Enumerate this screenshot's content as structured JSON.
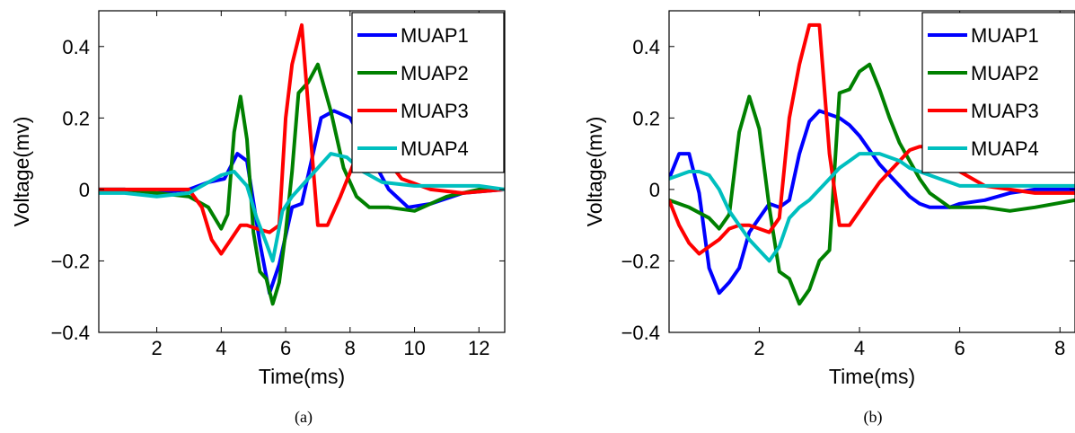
{
  "chart_data": [
    {
      "type": "line",
      "caption": "(a)",
      "xlabel": "Time(ms)",
      "ylabel": "Voltage(mv)",
      "xlim": [
        0.2,
        12.8
      ],
      "ylim": [
        -0.4,
        0.5
      ],
      "xticks": [
        2,
        4,
        6,
        8,
        10,
        12
      ],
      "yticks": [
        -0.4,
        -0.2,
        0,
        0.2,
        0.4
      ],
      "ytick_labels": [
        "−0.4",
        "−0.2",
        "0",
        "0.2",
        "0.4"
      ],
      "legend_position": "top-right",
      "series": [
        {
          "name": "MUAP1",
          "color": "#0000ff",
          "x": [
            0.2,
            1,
            2,
            3,
            3.6,
            4.1,
            4.5,
            4.8,
            5.2,
            5.5,
            5.8,
            6.2,
            6.5,
            6.8,
            7.1,
            7.5,
            8,
            8.6,
            9.2,
            9.8,
            10.5,
            11.5,
            12.8
          ],
          "y": [
            0,
            0,
            -0.01,
            0,
            0.02,
            0.03,
            0.1,
            0.08,
            -0.15,
            -0.29,
            -0.21,
            -0.05,
            -0.04,
            0.08,
            0.2,
            0.22,
            0.2,
            0.1,
            0,
            -0.05,
            -0.04,
            -0.01,
            0
          ]
        },
        {
          "name": "MUAP2",
          "color": "#008000",
          "x": [
            0.2,
            1,
            2,
            3,
            3.6,
            4,
            4.2,
            4.4,
            4.6,
            4.8,
            5,
            5.2,
            5.4,
            5.6,
            5.8,
            6,
            6.2,
            6.4,
            6.7,
            7,
            7.4,
            7.8,
            8.2,
            8.6,
            9.2,
            10,
            11,
            12,
            12.8
          ],
          "y": [
            0,
            0,
            -0.01,
            -0.02,
            -0.05,
            -0.11,
            -0.07,
            0.16,
            0.26,
            0.14,
            -0.12,
            -0.23,
            -0.25,
            -0.32,
            -0.26,
            -0.12,
            0.05,
            0.27,
            0.3,
            0.35,
            0.22,
            0.06,
            -0.02,
            -0.05,
            -0.05,
            -0.06,
            -0.02,
            0,
            0
          ]
        },
        {
          "name": "MUAP3",
          "color": "#ff0000",
          "x": [
            0.2,
            1,
            2,
            3,
            3.4,
            3.7,
            4,
            4.3,
            4.6,
            4.8,
            5.1,
            5.5,
            5.8,
            6,
            6.2,
            6.5,
            6.8,
            7,
            7.3,
            7.7,
            8.1,
            8.5,
            9,
            9.6,
            10.5,
            11.5,
            12.8
          ],
          "y": [
            0,
            0,
            0,
            0,
            -0.05,
            -0.14,
            -0.18,
            -0.14,
            -0.1,
            -0.1,
            -0.11,
            -0.12,
            -0.1,
            0.2,
            0.35,
            0.46,
            0.12,
            -0.1,
            -0.1,
            -0.02,
            0.07,
            0.12,
            0.1,
            0.03,
            0,
            -0.01,
            0
          ]
        },
        {
          "name": "MUAP4",
          "color": "#00bfbf",
          "x": [
            0.2,
            1,
            2,
            3,
            4,
            4.4,
            4.8,
            5.1,
            5.4,
            5.6,
            5.9,
            6.2,
            6.6,
            7,
            7.4,
            7.9,
            8.4,
            9,
            10,
            11,
            12,
            12.8
          ],
          "y": [
            -0.01,
            -0.01,
            -0.02,
            -0.01,
            0.04,
            0.05,
            0.01,
            -0.08,
            -0.15,
            -0.2,
            -0.06,
            -0.02,
            0.02,
            0.06,
            0.1,
            0.09,
            0.05,
            0.02,
            0.01,
            0.01,
            0.01,
            0
          ]
        }
      ]
    },
    {
      "type": "line",
      "caption": "(b)",
      "xlabel": "Time(ms)",
      "ylabel": "Voltage(mv)",
      "xlim": [
        0.2,
        8.3
      ],
      "ylim": [
        -0.4,
        0.5
      ],
      "xticks": [
        2,
        4,
        6,
        8
      ],
      "yticks": [
        -0.4,
        -0.2,
        0,
        0.2,
        0.4
      ],
      "ytick_labels": [
        "−0.4",
        "−0.2",
        "0",
        "0.2",
        "0.4"
      ],
      "legend_position": "top-right",
      "series": [
        {
          "name": "MUAP1",
          "color": "#0000ff",
          "x": [
            0.2,
            0.4,
            0.6,
            0.8,
            1,
            1.2,
            1.4,
            1.6,
            1.8,
            2,
            2.2,
            2.4,
            2.6,
            2.8,
            3,
            3.2,
            3.4,
            3.6,
            3.8,
            4,
            4.2,
            4.4,
            4.6,
            4.8,
            5,
            5.2,
            5.4,
            5.6,
            5.8,
            6,
            6.5,
            7,
            7.5,
            8.3
          ],
          "y": [
            0.03,
            0.1,
            0.1,
            -0.01,
            -0.22,
            -0.29,
            -0.26,
            -0.22,
            -0.12,
            -0.08,
            -0.04,
            -0.05,
            -0.03,
            0.1,
            0.19,
            0.22,
            0.21,
            0.2,
            0.18,
            0.15,
            0.11,
            0.07,
            0.04,
            0.01,
            -0.02,
            -0.04,
            -0.05,
            -0.05,
            -0.05,
            -0.04,
            -0.03,
            -0.01,
            0,
            0
          ]
        },
        {
          "name": "MUAP2",
          "color": "#008000",
          "x": [
            0.2,
            0.6,
            1,
            1.2,
            1.4,
            1.6,
            1.8,
            2,
            2.2,
            2.4,
            2.6,
            2.8,
            3,
            3.2,
            3.4,
            3.6,
            3.8,
            4,
            4.2,
            4.4,
            4.6,
            4.8,
            5,
            5.2,
            5.4,
            5.6,
            5.8,
            6,
            6.5,
            7,
            7.5,
            8.3
          ],
          "y": [
            -0.03,
            -0.05,
            -0.08,
            -0.11,
            -0.07,
            0.16,
            0.26,
            0.17,
            -0.05,
            -0.23,
            -0.25,
            -0.32,
            -0.28,
            -0.2,
            -0.17,
            0.27,
            0.28,
            0.33,
            0.35,
            0.28,
            0.2,
            0.13,
            0.08,
            0.03,
            -0.01,
            -0.03,
            -0.05,
            -0.05,
            -0.05,
            -0.06,
            -0.05,
            -0.03
          ]
        },
        {
          "name": "MUAP3",
          "color": "#ff0000",
          "x": [
            0.2,
            0.4,
            0.6,
            0.8,
            1,
            1.2,
            1.4,
            1.6,
            1.8,
            2,
            2.2,
            2.4,
            2.6,
            2.8,
            3,
            3.2,
            3.4,
            3.6,
            3.8,
            4,
            4.2,
            4.4,
            4.6,
            4.8,
            5,
            5.2,
            5.4,
            5.6,
            5.8,
            6,
            6.5,
            7,
            7.5,
            8.3
          ],
          "y": [
            -0.03,
            -0.1,
            -0.15,
            -0.18,
            -0.16,
            -0.14,
            -0.11,
            -0.1,
            -0.1,
            -0.11,
            -0.12,
            -0.08,
            0.2,
            0.35,
            0.46,
            0.46,
            0.1,
            -0.1,
            -0.1,
            -0.06,
            -0.02,
            0.02,
            0.05,
            0.08,
            0.11,
            0.12,
            0.12,
            0.1,
            0.08,
            0.05,
            0.01,
            0,
            -0.01,
            -0.01
          ]
        },
        {
          "name": "MUAP4",
          "color": "#00bfbf",
          "x": [
            0.2,
            0.4,
            0.6,
            0.8,
            1,
            1.2,
            1.4,
            1.6,
            1.8,
            2,
            2.2,
            2.4,
            2.6,
            2.8,
            3,
            3.2,
            3.4,
            3.6,
            3.8,
            4,
            4.2,
            4.4,
            4.6,
            4.8,
            5,
            5.2,
            5.4,
            5.6,
            5.8,
            6,
            6.5,
            7,
            7.5,
            8.3
          ],
          "y": [
            0.03,
            0.04,
            0.05,
            0.05,
            0.04,
            0.0,
            -0.06,
            -0.1,
            -0.14,
            -0.17,
            -0.2,
            -0.16,
            -0.08,
            -0.05,
            -0.03,
            0.0,
            0.03,
            0.06,
            0.08,
            0.1,
            0.1,
            0.1,
            0.09,
            0.08,
            0.06,
            0.05,
            0.04,
            0.03,
            0.02,
            0.01,
            0.01,
            0.01,
            0.01,
            0.01
          ]
        }
      ]
    }
  ]
}
